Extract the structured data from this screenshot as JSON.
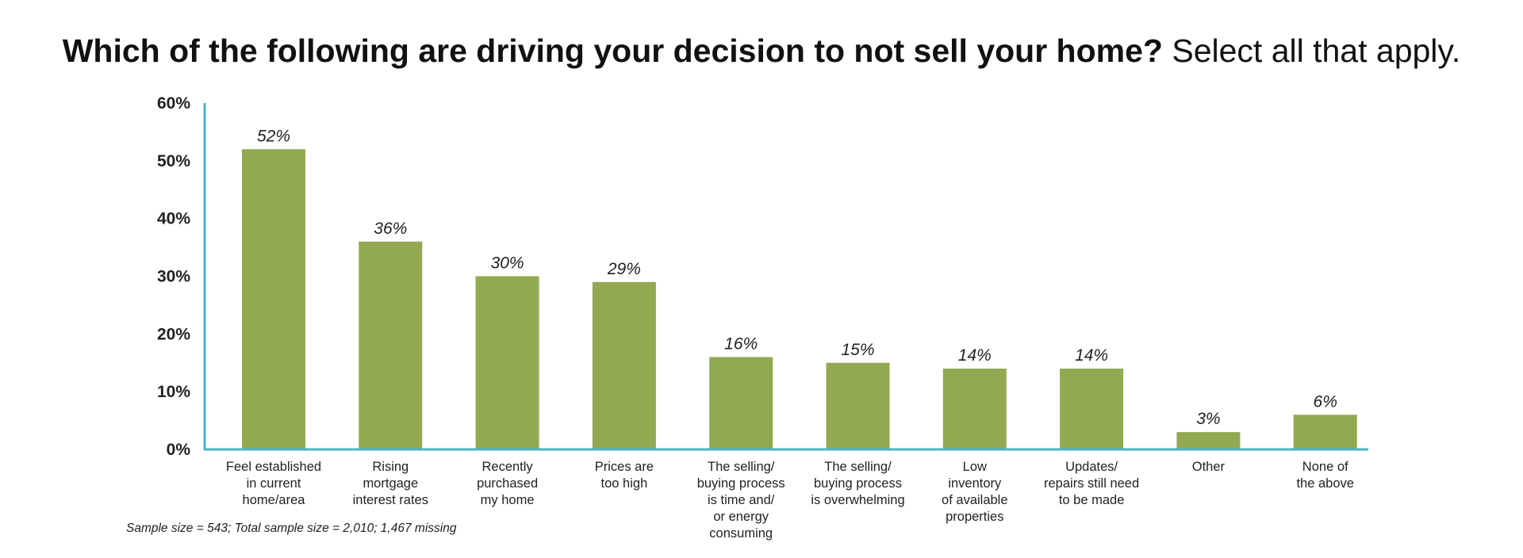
{
  "title": {
    "bold": "Which of the following are driving your decision to not sell your home?",
    "light": "Select all that apply."
  },
  "note": "Sample size = 543; Total sample size = 2,010; 1,467 missing",
  "colors": {
    "bar": "#92a952",
    "axis": "#4ab4c6"
  },
  "chart_data": {
    "type": "bar",
    "title": "Which of the following are driving your decision to not sell your home? Select all that apply.",
    "xlabel": "",
    "ylabel": "",
    "ylim": [
      0,
      60
    ],
    "yticks": [
      "0%",
      "10%",
      "20%",
      "30%",
      "40%",
      "50%",
      "60%"
    ],
    "grid": false,
    "categories": [
      [
        "Feel established",
        "in current",
        "home/area"
      ],
      [
        "Rising",
        "mortgage",
        "interest rates"
      ],
      [
        "Recently",
        "purchased",
        "my home"
      ],
      [
        "Prices are",
        "too high"
      ],
      [
        "The selling/",
        "buying process",
        "is time and/",
        "or energy",
        "consuming"
      ],
      [
        "The selling/",
        "buying process",
        "is overwhelming"
      ],
      [
        "Low",
        "inventory",
        "of available",
        "properties"
      ],
      [
        "Updates/",
        "repairs still need",
        "to be made"
      ],
      [
        "Other"
      ],
      [
        "None of",
        "the above"
      ]
    ],
    "values": [
      52,
      36,
      30,
      29,
      16,
      15,
      14,
      14,
      3,
      6
    ],
    "value_labels": [
      "52%",
      "36%",
      "30%",
      "29%",
      "16%",
      "15%",
      "14%",
      "14%",
      "3%",
      "6%"
    ]
  }
}
